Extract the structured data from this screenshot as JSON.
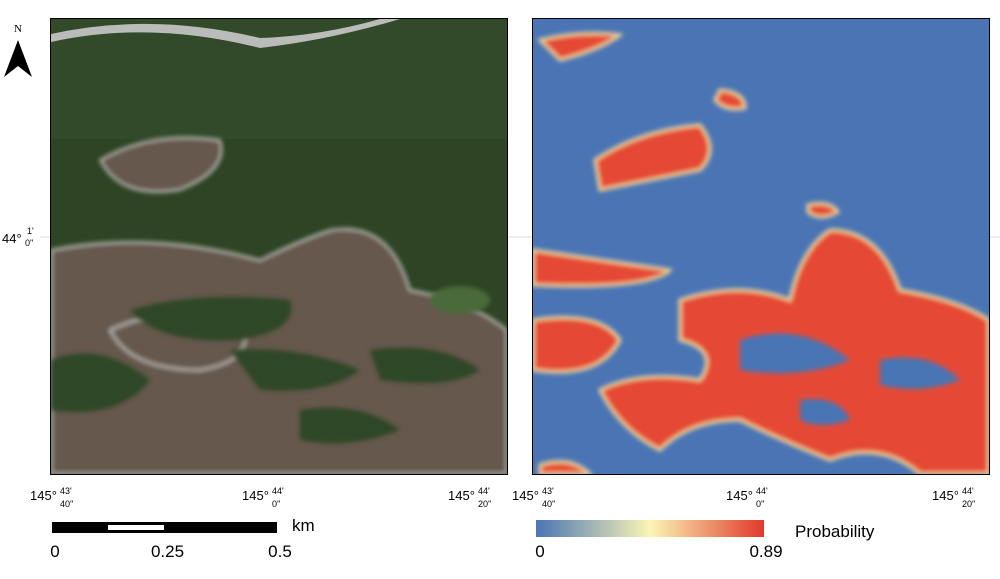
{
  "north_label": "N",
  "latitude_label": {
    "deg": "44°",
    "min": "1'",
    "sec": "0''"
  },
  "left_map": {
    "longitude_labels": [
      {
        "deg": "145°",
        "min": "43'",
        "sec": "40''"
      },
      {
        "deg": "145°",
        "min": "44'",
        "sec": "0''"
      },
      {
        "deg": "145°",
        "min": "44'",
        "sec": "20''"
      }
    ]
  },
  "right_map": {
    "longitude_labels": [
      {
        "deg": "145°",
        "min": "43'",
        "sec": "40''"
      },
      {
        "deg": "145°",
        "min": "44'",
        "sec": "0''"
      },
      {
        "deg": "145°",
        "min": "44'",
        "sec": "20''"
      }
    ]
  },
  "scale_bar": {
    "unit": "km",
    "ticks": [
      0,
      0.25,
      0.5
    ]
  },
  "legend": {
    "title": "Probability",
    "min": 0,
    "max": 0.89
  }
}
